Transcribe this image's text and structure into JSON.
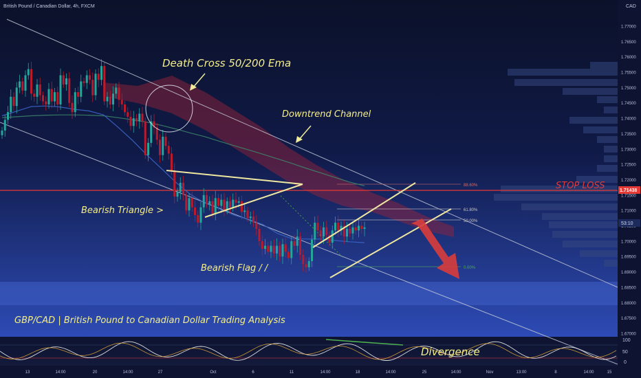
{
  "header": {
    "symbol_title": "British Pound / Canadian Dollar, 4h, FXCM",
    "currency": "CAD"
  },
  "annotations": {
    "death_cross": "Death Cross 50/200 Ema",
    "downtrend_channel": "Downtrend Channel",
    "bearish_triangle": "Bearish Triangle >",
    "bearish_flag": "Bearish Flag / /",
    "stop_loss": "STOP LOSS",
    "divergence": "Divergence",
    "banner": "GBP/CAD | British Pound to Canadian Dollar Trading Analysis"
  },
  "fib_levels": [
    {
      "label": "88.60%",
      "value": 1.7158
    },
    {
      "label": "61.80%",
      "value": 1.7085
    },
    {
      "label": "50.00%",
      "value": 1.7053
    },
    {
      "label": "0.00%",
      "value": 1.6917
    }
  ],
  "price_scale": {
    "labels": [
      "1.77000",
      "1.76500",
      "1.76000",
      "1.75500",
      "1.75000",
      "1.74500",
      "1.74000",
      "1.73500",
      "1.73000",
      "1.72500",
      "1.72000",
      "1.71500",
      "1.71000",
      "1.70500",
      "1.70000",
      "1.69500",
      "1.69000",
      "1.68500",
      "1.68000",
      "1.67500",
      "1.67000"
    ],
    "current_price_tag": "1.71438",
    "countdown_tag": "53:10"
  },
  "oscillator": {
    "labels": [
      "100",
      "50",
      "0"
    ]
  },
  "time_axis": {
    "labels": [
      "13",
      "14:00",
      "20",
      "14:00",
      "27",
      "Oct",
      "6",
      "11",
      "14:00",
      "18",
      "14:00",
      "25",
      "14:00",
      "Nov",
      "13:00",
      "8",
      "14:00",
      "15"
    ]
  },
  "colors": {
    "background_top": "#0c1230",
    "background_bottom": "#2742a3",
    "bull_candle": "#26a69a",
    "bear_candle": "#b81c2c",
    "annotation_text": "#f5ef8a",
    "stop_loss": "#e53935",
    "ichimoku_cloud": "#a0233a",
    "trendline": "#f0e8a0"
  },
  "chart_data": {
    "type": "candlestick",
    "title": "British Pound / Canadian Dollar, 4h, FXCM",
    "xlabel": "",
    "ylabel": "",
    "ylim": [
      1.6685,
      1.7785
    ],
    "stop_loss_level": 1.71438,
    "x_tick_labels": [
      "13",
      "14:00",
      "20",
      "14:00",
      "27",
      "Oct",
      "6",
      "11",
      "14:00",
      "18",
      "14:00",
      "25",
      "14:00",
      "Nov",
      "13:00",
      "8",
      "14:00",
      "15"
    ],
    "series": [
      {
        "points": [
          [
            1.7345,
            1.736
          ],
          [
            1.736,
            1.7395
          ],
          [
            1.7395,
            1.742
          ],
          [
            1.742,
            1.747
          ],
          [
            1.747,
            1.744
          ],
          [
            1.744,
            1.75
          ],
          [
            1.75,
            1.752
          ],
          [
            1.752,
            1.749
          ],
          [
            1.749,
            1.754
          ],
          [
            1.754,
            1.756
          ],
          [
            1.756,
            1.748
          ],
          [
            1.748,
            1.747
          ],
          [
            1.747,
            1.751
          ],
          [
            1.751,
            1.7475
          ],
          [
            1.7475,
            1.7455
          ],
          [
            1.7455,
            1.7445
          ],
          [
            1.7445,
            1.7495
          ],
          [
            1.7495,
            1.7455
          ],
          [
            1.7455,
            1.7485
          ],
          [
            1.7485,
            1.7445
          ],
          [
            1.7445,
            1.754
          ],
          [
            1.754,
            1.751
          ],
          [
            1.751,
            1.753
          ],
          [
            1.753,
            1.745
          ],
          [
            1.745,
            1.742
          ],
          [
            1.742,
            1.7485
          ],
          [
            1.7485,
            1.747
          ],
          [
            1.747,
            1.752
          ],
          [
            1.752,
            1.7515
          ],
          [
            1.7515,
            1.754
          ],
          [
            1.754,
            1.7525
          ],
          [
            1.7525,
            1.7475
          ],
          [
            1.7475,
            1.7545
          ],
          [
            1.7545,
            1.7525
          ],
          [
            1.7525,
            1.757
          ],
          [
            1.757,
            1.7455
          ],
          [
            1.7455,
            1.747
          ],
          [
            1.747,
            1.7445
          ],
          [
            1.7445,
            1.748
          ],
          [
            1.748,
            1.75
          ],
          [
            1.75,
            1.746
          ],
          [
            1.746,
            1.7445
          ],
          [
            1.7445,
            1.742
          ],
          [
            1.742,
            1.7405
          ],
          [
            1.7405,
            1.7375
          ],
          [
            1.7375,
            1.74
          ],
          [
            1.74,
            1.739
          ],
          [
            1.739,
            1.7415
          ],
          [
            1.7415,
            1.739
          ],
          [
            1.739,
            1.728
          ],
          [
            1.728,
            1.732
          ],
          [
            1.732,
            1.739
          ],
          [
            1.739,
            1.737
          ],
          [
            1.737,
            1.733
          ],
          [
            1.733,
            1.728
          ],
          [
            1.728,
            1.734
          ],
          [
            1.734,
            1.731
          ],
          [
            1.731,
            1.7285
          ],
          [
            1.7285,
            1.723
          ],
          [
            1.723,
            1.7145
          ],
          [
            1.7145,
            1.716
          ],
          [
            1.716,
            1.719
          ],
          [
            1.719,
            1.715
          ],
          [
            1.715,
            1.71
          ],
          [
            1.71,
            1.714
          ],
          [
            1.714,
            1.711
          ],
          [
            1.711,
            1.7085
          ],
          [
            1.7085,
            1.706
          ],
          [
            1.706,
            1.711
          ],
          [
            1.711,
            1.715
          ],
          [
            1.715,
            1.712
          ],
          [
            1.712,
            1.713
          ],
          [
            1.713,
            1.709
          ],
          [
            1.709,
            1.714
          ],
          [
            1.714,
            1.7115
          ],
          [
            1.7115,
            1.7135
          ],
          [
            1.7135,
            1.71
          ],
          [
            1.71,
            1.713
          ],
          [
            1.713,
            1.711
          ],
          [
            1.711,
            1.7135
          ],
          [
            1.7135,
            1.7125
          ],
          [
            1.7125,
            1.713
          ],
          [
            1.713,
            1.7095
          ],
          [
            1.7095,
            1.71
          ],
          [
            1.71,
            1.7075
          ],
          [
            1.7075,
            1.708
          ],
          [
            1.708,
            1.706
          ],
          [
            1.706,
            1.704
          ],
          [
            1.704,
            1.7
          ],
          [
            1.7,
            1.6975
          ],
          [
            1.6975,
            1.6985
          ],
          [
            1.6985,
            1.6965
          ],
          [
            1.6965,
            1.6985
          ],
          [
            1.6985,
            1.696
          ],
          [
            1.696,
            1.6985
          ],
          [
            1.6985,
            1.695
          ],
          [
            1.695,
            1.699
          ],
          [
            1.699,
            1.6965
          ],
          [
            1.6965,
            1.6945
          ],
          [
            1.6945,
            1.7
          ],
          [
            1.7,
            1.6985
          ],
          [
            1.6985,
            1.7015
          ],
          [
            1.7015,
            1.6955
          ],
          [
            1.6955,
            1.6925
          ],
          [
            1.6925,
            1.6915
          ],
          [
            1.6915,
            1.6935
          ],
          [
            1.6935,
            1.7005
          ],
          [
            1.7005,
            1.706
          ],
          [
            1.706,
            1.7035
          ],
          [
            1.7035,
            1.7015
          ],
          [
            1.7015,
            1.7045
          ],
          [
            1.7045,
            1.702
          ],
          [
            1.702,
            1.6995
          ],
          [
            1.6995,
            1.7035
          ],
          [
            1.7035,
            1.706
          ],
          [
            1.706,
            1.7035
          ],
          [
            1.7035,
            1.705
          ],
          [
            1.705,
            1.7015
          ],
          [
            1.7015,
            1.704
          ],
          [
            1.704,
            1.7025
          ],
          [
            1.7025,
            1.7045
          ],
          [
            1.7045,
            1.7035
          ],
          [
            1.7035,
            1.705
          ],
          [
            1.705,
            1.704
          ],
          [
            1.704,
            1.7045
          ]
        ]
      }
    ],
    "ema_50": [
      1.7408,
      1.7423,
      1.7438,
      1.744,
      1.7437,
      1.7429,
      1.7424,
      1.7411,
      1.7371,
      1.7328,
      1.728,
      1.7236,
      1.7191,
      1.7152,
      1.7124,
      1.7105,
      1.7085,
      1.7071,
      1.7054,
      1.7025,
      1.7008,
      1.7007,
      1.7007,
      1.7002,
      1.6998,
      1.6995
    ],
    "ema_200": [
      1.7402,
      1.7405,
      1.7408,
      1.741,
      1.7411,
      1.7411,
      1.741,
      1.7408,
      1.7402,
      1.7395,
      1.7387,
      1.7377,
      1.7365,
      1.7352,
      1.734,
      1.7325,
      1.7311,
      1.7297,
      1.7283,
      1.7268,
      1.7253,
      1.7237,
      1.7222,
      1.7207,
      1.7192,
      1.718
    ],
    "oscillator_range": [
      0,
      100
    ]
  }
}
